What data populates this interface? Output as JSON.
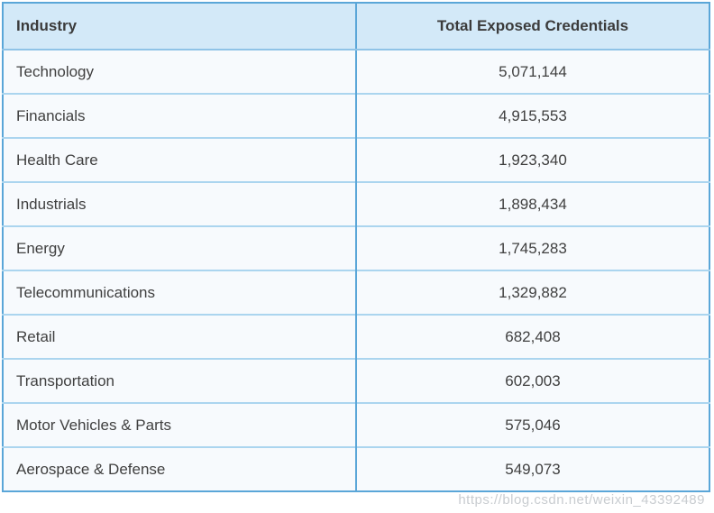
{
  "table": {
    "columns": [
      "Industry",
      "Total Exposed Credentials"
    ],
    "rows": [
      {
        "industry": "Technology",
        "credentials": "5,071,144"
      },
      {
        "industry": "Financials",
        "credentials": "4,915,553"
      },
      {
        "industry": "Health Care",
        "credentials": "1,923,340"
      },
      {
        "industry": "Industrials",
        "credentials": "1,898,434"
      },
      {
        "industry": "Energy",
        "credentials": "1,745,283"
      },
      {
        "industry": "Telecommunications",
        "credentials": "1,329,882"
      },
      {
        "industry": "Retail",
        "credentials": "682,408"
      },
      {
        "industry": "Transportation",
        "credentials": "602,003"
      },
      {
        "industry": "Motor Vehicles & Parts",
        "credentials": "575,046"
      },
      {
        "industry": "Aerospace & Defense",
        "credentials": "549,073"
      }
    ]
  },
  "watermark": "https://blog.csdn.net/weixin_43392489",
  "colors": {
    "outer_border": "#5aa6d8",
    "column_divider": "#5aa6d8",
    "header_bg": "#d3e9f8",
    "header_separator": "#8fc3e7",
    "row_separator": "#abd5ef",
    "body_bg": "#f7fafd",
    "header_text": "#3b3b3b",
    "body_text": "#404040",
    "watermark_text": "#b9bec3"
  },
  "chart_data": {
    "type": "table",
    "title": "",
    "columns": [
      "Industry",
      "Total Exposed Credentials"
    ],
    "categories": [
      "Technology",
      "Financials",
      "Health Care",
      "Industrials",
      "Energy",
      "Telecommunications",
      "Retail",
      "Transportation",
      "Motor Vehicles & Parts",
      "Aerospace & Defense"
    ],
    "values": [
      5071144,
      4915553,
      1923340,
      1898434,
      1745283,
      1329882,
      682408,
      602003,
      575046,
      549073
    ],
    "layout": {
      "grid": true,
      "header_row": true,
      "value_alignment": "center",
      "category_alignment": "left"
    }
  }
}
